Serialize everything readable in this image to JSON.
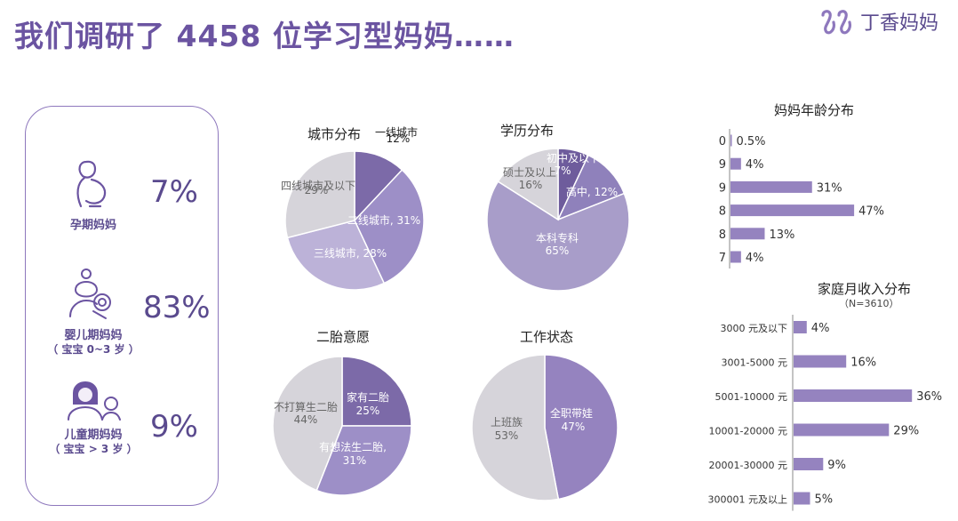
{
  "header": {
    "title": "我们调研了 4458 位学习型妈妈……",
    "brand": "丁香妈妈"
  },
  "moms": [
    {
      "icon": "pregnant-mom-icon",
      "label": "孕期妈妈",
      "sub": "",
      "pct": "7%"
    },
    {
      "icon": "infant-mom-icon",
      "label": "婴儿期妈妈",
      "sub": "（ 宝宝 0~3 岁 ）",
      "pct": "83%"
    },
    {
      "icon": "child-mom-icon",
      "label": "儿童期妈妈",
      "sub": "（ 宝宝 > 3 岁 ）",
      "pct": "9%"
    }
  ],
  "colors": {
    "accent": "#6b54a1",
    "dark_purple": "#7c6aa8",
    "mid_purple": "#9d8fc7",
    "light_purple": "#bcb2d8",
    "lavender": "#a89dc9",
    "gray": "#d6d4da",
    "bar": "#9583bf"
  },
  "chart_data": [
    {
      "type": "pie",
      "title": "城市分布",
      "slices": [
        {
          "label": "一线城市",
          "value": 12,
          "text": "12%",
          "color": "#7c6aa8"
        },
        {
          "label": "二线城市",
          "value": 31,
          "text": "二线城市, 31%",
          "color": "#9d8fc7"
        },
        {
          "label": "三线城市",
          "value": 28,
          "text": "三线城市, 28%",
          "color": "#bcb2d8"
        },
        {
          "label": "四线城市及以下",
          "value": 29,
          "text": "29%",
          "color": "#d6d4da"
        }
      ]
    },
    {
      "type": "pie",
      "title": "学历分布",
      "slices": [
        {
          "label": "初中及以下",
          "value": 7,
          "text": "7%",
          "color": "#6e5c9c"
        },
        {
          "label": "高中",
          "value": 12,
          "text": "高中, 12%",
          "color": "#8f81bb"
        },
        {
          "label": "本科专科",
          "value": 65,
          "text": "65%",
          "color": "#a89dc9"
        },
        {
          "label": "硕士及以上",
          "value": 16,
          "text": "16%",
          "color": "#d6d4da"
        }
      ]
    },
    {
      "type": "pie",
      "title": "二胎意愿",
      "slices": [
        {
          "label": "家有二胎",
          "value": 25,
          "text": "25%",
          "color": "#7c6aa8"
        },
        {
          "label": "有想法生二胎,",
          "value": 31,
          "text": "31%",
          "color": "#9d8fc7"
        },
        {
          "label": "不打算生二胎",
          "value": 44,
          "text": "44%",
          "color": "#d6d4da"
        }
      ]
    },
    {
      "type": "pie",
      "title": "工作状态",
      "slices": [
        {
          "label": "全职带娃",
          "value": 47,
          "text": "47%",
          "color": "#9583bf"
        },
        {
          "label": "上班族",
          "value": 53,
          "text": "53%",
          "color": "#d6d4da"
        }
      ]
    },
    {
      "type": "bar",
      "orientation": "horizontal",
      "title": "妈妈年龄分布",
      "categories": [
        "0",
        "9",
        "9",
        "8",
        "8",
        "7"
      ],
      "values": [
        0.5,
        4,
        31,
        47,
        13,
        4
      ],
      "labels": [
        "0.5%",
        "4%",
        "31%",
        "47%",
        "13%",
        "4%"
      ],
      "xlim": [
        0,
        50
      ]
    },
    {
      "type": "bar",
      "orientation": "horizontal",
      "title": "家庭月收入分布",
      "subtitle": "（N=3610）",
      "categories": [
        "3000 元及以下",
        "3001-5000 元",
        "5001-10000 元",
        "10001-20000 元",
        "20001-30000 元",
        "300001 元及以上"
      ],
      "values": [
        4,
        16,
        36,
        29,
        9,
        5
      ],
      "labels": [
        "4%",
        "16%",
        "36%",
        "29%",
        "9%",
        "5%"
      ],
      "xlim": [
        0,
        40
      ]
    }
  ]
}
